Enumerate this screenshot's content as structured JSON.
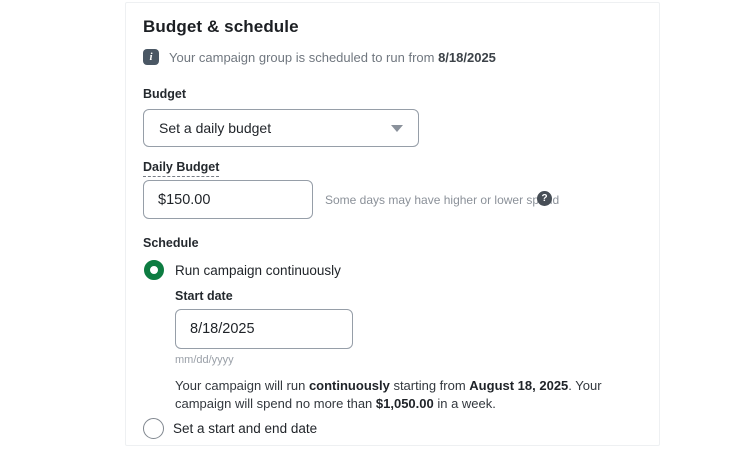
{
  "page": {
    "title": "Budget & schedule"
  },
  "info_banner": {
    "icon_glyph": "i",
    "segments": [
      {
        "text": "Your campaign group is scheduled to run from ",
        "bold": false
      },
      {
        "text": "8/18/2025",
        "bold": true
      }
    ]
  },
  "budget": {
    "label": "Budget",
    "dropdown_value": "Set a daily budget"
  },
  "daily_budget": {
    "label": "Daily Budget",
    "value": "$150.00",
    "helper_text": "Some days may have higher or lower spend",
    "help_icon_glyph": "?"
  },
  "schedule": {
    "label": "Schedule",
    "options": [
      {
        "label": "Run campaign continuously",
        "selected": true
      },
      {
        "label": "Set a start and end date",
        "selected": false
      }
    ],
    "start_date": {
      "label": "Start date",
      "value": "8/18/2025",
      "format_hint": "mm/dd/yyyy"
    },
    "summary_segments": [
      {
        "text": "Your campaign will run ",
        "bold": false
      },
      {
        "text": "continuously",
        "bold": true
      },
      {
        "text": " starting from ",
        "bold": false
      },
      {
        "text": "August 18, 2025",
        "bold": true
      },
      {
        "text": ". Your campaign will spend no more than ",
        "bold": false
      },
      {
        "text": "$1,050.00",
        "bold": true
      },
      {
        "text": " in a week.",
        "bold": false
      }
    ]
  },
  "colors": {
    "radio_selected_green": "#0d7c41",
    "info_icon_bg": "#4a5764",
    "help_icon_bg": "#474e56",
    "input_border": "#969ea8"
  }
}
